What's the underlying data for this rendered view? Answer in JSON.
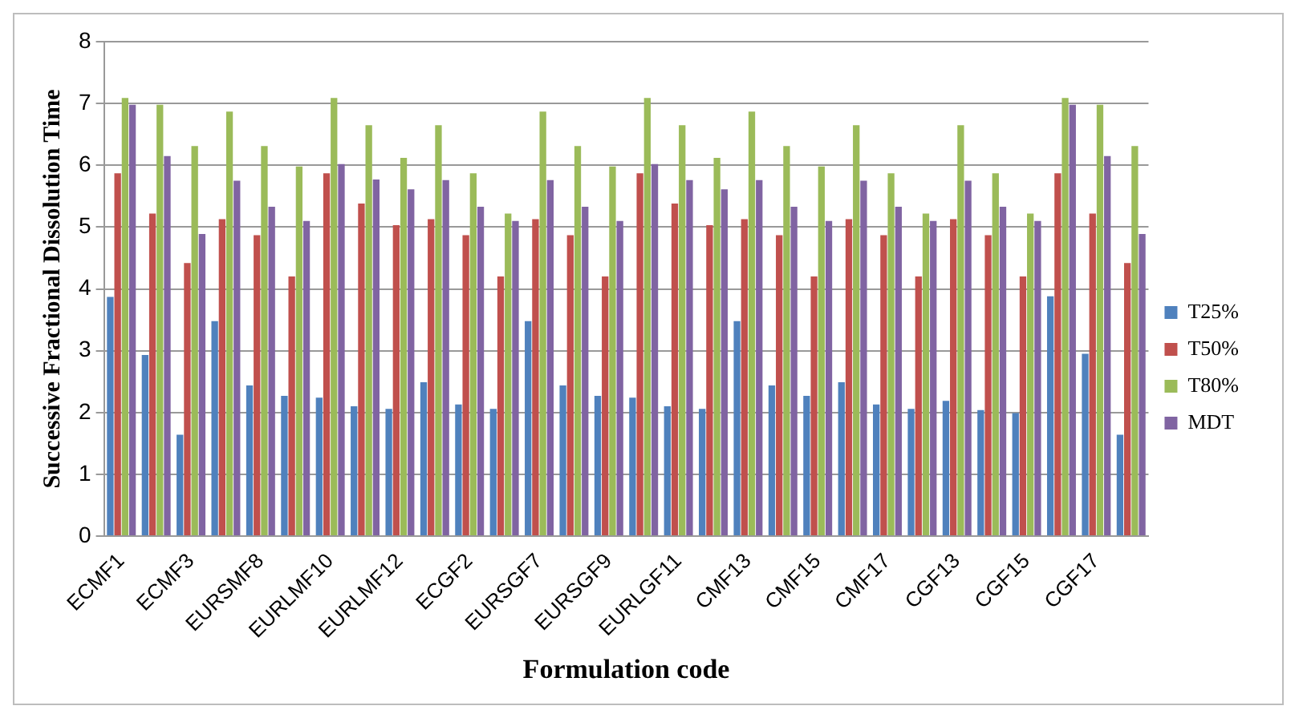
{
  "chart_data": {
    "type": "bar",
    "xlabel": "Formulation code",
    "ylabel": "Successive Fractional Dissolution Time",
    "categories": [
      "ECMF1",
      null,
      "ECMF3",
      null,
      "EURSMF8",
      null,
      "EURLMF10",
      null,
      "EURLMF12",
      null,
      "ECGF2",
      null,
      "EURSGF7",
      null,
      "EURSGF9",
      null,
      "EURLGF11",
      null,
      "CMF13",
      null,
      "CMF15",
      null,
      "CMF17",
      null,
      "CGF13",
      null,
      "CGF15",
      null,
      "CGF17",
      null
    ],
    "series": [
      {
        "name": "T25%",
        "color": "#4f81bd",
        "values": [
          3.87,
          2.93,
          1.64,
          3.48,
          2.44,
          2.27,
          2.24,
          2.1,
          2.06,
          2.49,
          2.13,
          2.06,
          3.48,
          2.44,
          2.27,
          2.24,
          2.1,
          2.06,
          3.48,
          2.44,
          2.27,
          2.49,
          2.13,
          2.06,
          2.19,
          2.04,
          1.99,
          3.88,
          2.95,
          1.64
        ]
      },
      {
        "name": "T50%",
        "color": "#c0504d",
        "values": [
          5.87,
          5.22,
          4.42,
          5.13,
          4.87,
          4.2,
          5.87,
          5.38,
          5.03,
          5.13,
          4.87,
          4.2,
          5.13,
          4.87,
          4.2,
          5.87,
          5.38,
          5.03,
          5.13,
          4.87,
          4.2,
          5.13,
          4.87,
          4.2,
          5.13,
          4.87,
          4.2,
          5.87,
          5.22,
          4.42
        ]
      },
      {
        "name": "T80%",
        "color": "#9bbb59",
        "values": [
          7.09,
          6.98,
          6.31,
          6.87,
          6.31,
          5.98,
          7.09,
          6.65,
          6.12,
          6.65,
          5.87,
          5.22,
          6.87,
          6.31,
          5.98,
          7.09,
          6.65,
          6.12,
          6.87,
          6.31,
          5.98,
          6.65,
          5.87,
          5.22,
          6.65,
          5.87,
          5.22,
          7.09,
          6.98,
          6.31
        ]
      },
      {
        "name": "MDT",
        "color": "#8064a2",
        "values": [
          6.98,
          6.15,
          4.89,
          5.75,
          5.33,
          5.1,
          6.02,
          5.77,
          5.61,
          5.76,
          5.33,
          5.1,
          5.76,
          5.33,
          5.1,
          6.02,
          5.76,
          5.61,
          5.76,
          5.33,
          5.1,
          5.75,
          5.33,
          5.1,
          5.75,
          5.33,
          5.1,
          6.98,
          6.15,
          4.89
        ]
      }
    ],
    "ylim": [
      0,
      8
    ],
    "yticks": [
      0,
      1,
      2,
      3,
      4,
      5,
      6,
      7,
      8
    ],
    "grid": "y",
    "legend": "right"
  }
}
